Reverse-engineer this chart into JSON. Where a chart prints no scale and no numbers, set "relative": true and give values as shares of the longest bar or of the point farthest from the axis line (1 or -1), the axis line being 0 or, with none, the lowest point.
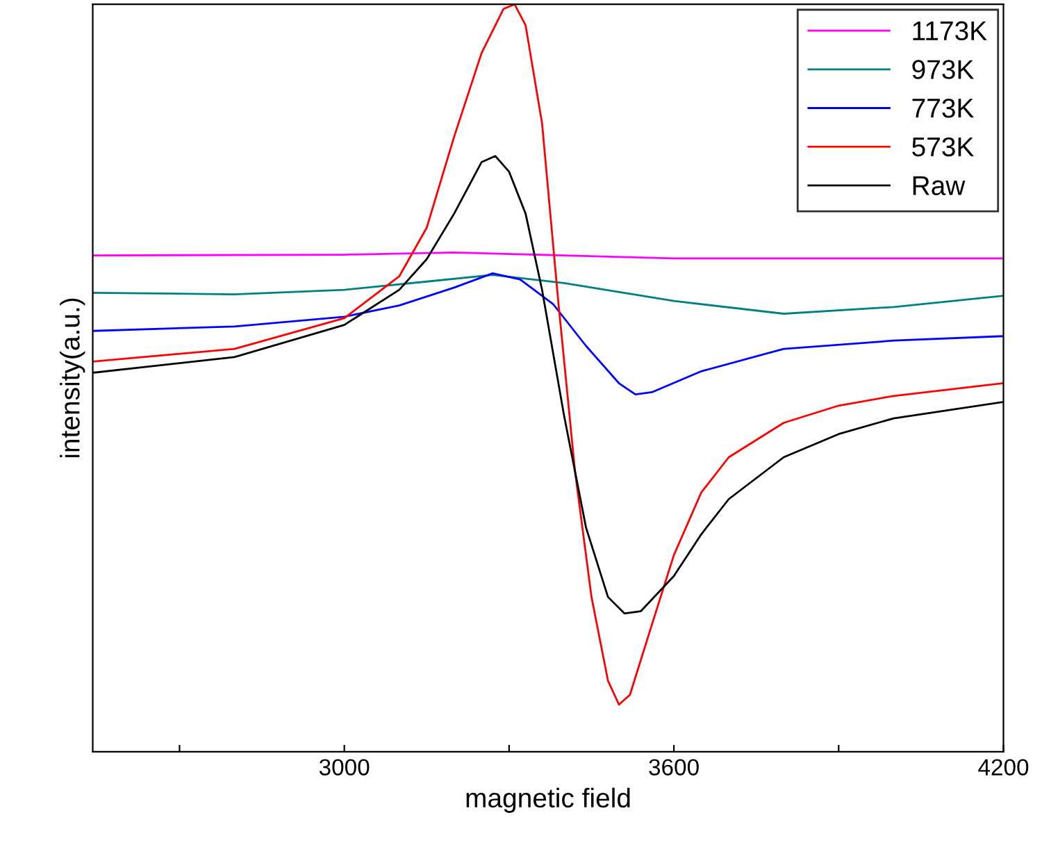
{
  "chart_data": {
    "type": "line",
    "relative": true,
    "xlabel": "magnetic field",
    "ylabel": "intensity(a.u.)",
    "xlim": [
      2542,
      4200
    ],
    "xticks": [
      {
        "value": 2700,
        "label": null
      },
      3000,
      {
        "value": 3300,
        "label": null
      },
      3600,
      {
        "value": 3900,
        "label": null
      },
      4200
    ],
    "legend": "top right",
    "grid": false,
    "marker": "none",
    "line_style": "solid",
    "series": [
      {
        "name": "1173K",
        "color": "#ff00ff",
        "x": [
          2542,
          3000,
          3200,
          3400,
          3600,
          4200
        ],
        "values": [
          0.664,
          0.665,
          0.668,
          0.664,
          0.66,
          0.66
        ]
      },
      {
        "name": "973K",
        "color": "#008080",
        "x": [
          2542,
          2800,
          3000,
          3150,
          3270,
          3400,
          3600,
          3800,
          4000,
          4200
        ],
        "values": [
          0.614,
          0.612,
          0.618,
          0.629,
          0.638,
          0.627,
          0.603,
          0.586,
          0.595,
          0.61
        ]
      },
      {
        "name": "773K",
        "color": "#0000ff",
        "x": [
          2542,
          2800,
          3000,
          3100,
          3200,
          3270,
          3320,
          3380,
          3440,
          3500,
          3530,
          3560,
          3650,
          3800,
          4000,
          4200
        ],
        "values": [
          0.563,
          0.569,
          0.582,
          0.597,
          0.621,
          0.64,
          0.632,
          0.599,
          0.543,
          0.493,
          0.478,
          0.481,
          0.509,
          0.539,
          0.55,
          0.556
        ]
      },
      {
        "name": "573K",
        "color": "#ff0000",
        "x": [
          2542,
          2800,
          3000,
          3100,
          3150,
          3200,
          3250,
          3290,
          3310,
          3330,
          3360,
          3390,
          3420,
          3450,
          3480,
          3500,
          3520,
          3560,
          3600,
          3650,
          3700,
          3800,
          3900,
          4000,
          4200
        ],
        "values": [
          0.522,
          0.539,
          0.58,
          0.636,
          0.701,
          0.823,
          0.935,
          0.994,
          1.0,
          0.972,
          0.841,
          0.599,
          0.375,
          0.207,
          0.095,
          0.063,
          0.076,
          0.17,
          0.263,
          0.347,
          0.394,
          0.44,
          0.463,
          0.476,
          0.493
        ]
      },
      {
        "name": "Raw",
        "color": "#000000",
        "x": [
          2542,
          2800,
          3000,
          3100,
          3150,
          3200,
          3250,
          3275,
          3300,
          3330,
          3360,
          3400,
          3440,
          3480,
          3510,
          3540,
          3600,
          3650,
          3700,
          3800,
          3900,
          4000,
          4200
        ],
        "values": [
          0.507,
          0.528,
          0.571,
          0.618,
          0.659,
          0.72,
          0.789,
          0.797,
          0.776,
          0.72,
          0.618,
          0.45,
          0.3,
          0.207,
          0.185,
          0.188,
          0.235,
          0.291,
          0.338,
          0.394,
          0.425,
          0.446,
          0.468
        ]
      }
    ]
  }
}
